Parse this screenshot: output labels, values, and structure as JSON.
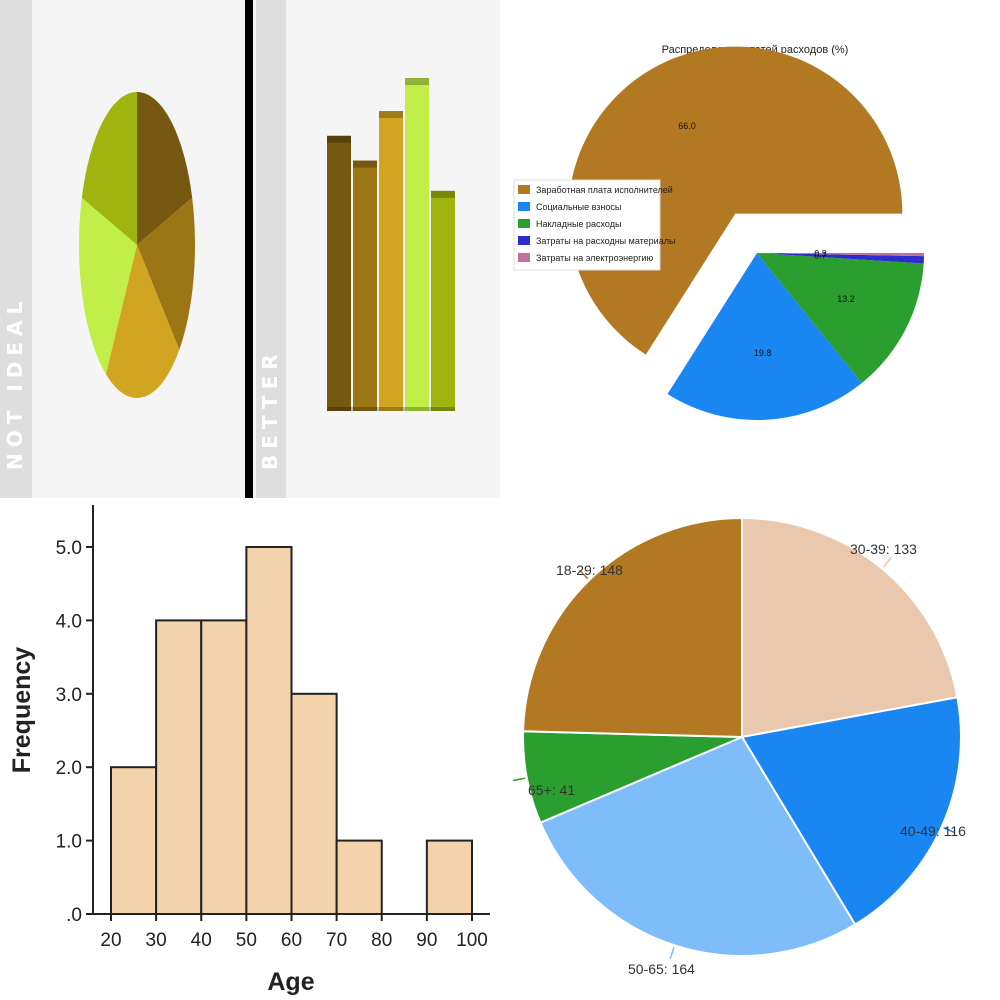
{
  "chart_data": [
    {
      "id": "not_ideal",
      "type": "pie",
      "side_label": "NOT IDEAL",
      "values": [
        20,
        17,
        22,
        21,
        20
      ],
      "colors": [
        "#765810",
        "#9c7615",
        "#d1a421",
        "#c1ee48",
        "#9fb40f"
      ]
    },
    {
      "id": "better",
      "type": "bar",
      "side_label": "BETTER",
      "values": [
        100,
        91,
        109,
        121,
        80
      ],
      "colors": [
        "#765810",
        "#9c7615",
        "#d1a421",
        "#c1ee48",
        "#9fb40f"
      ],
      "ylim": [
        0,
        121
      ]
    },
    {
      "id": "expenses",
      "type": "pie",
      "title": "Распределение статей расходов (%)",
      "labels": [
        "Заработная плата исполнителей",
        "Социальные взносы",
        "Накладные расходы",
        "Затраты на расходны материалы",
        "Затраты на электроэнергию"
      ],
      "values": [
        66.0,
        19.8,
        13.2,
        0.7,
        0.3
      ],
      "value_labels": [
        "66.0",
        "19.8",
        "13.2",
        "0.7",
        "0.3"
      ],
      "colors": [
        "#b37822",
        "#1a86f2",
        "#2a9e2e",
        "#2c2ccf",
        "#c0719a"
      ],
      "legend_position": "left"
    },
    {
      "id": "age_histogram",
      "type": "bar",
      "xlabel": "Age",
      "ylabel": "Frequency",
      "bins": [
        [
          20,
          30
        ],
        [
          30,
          40
        ],
        [
          40,
          50
        ],
        [
          50,
          60
        ],
        [
          60,
          70
        ],
        [
          70,
          80
        ],
        [
          90,
          100
        ]
      ],
      "values": [
        2,
        4,
        4,
        5,
        3,
        1,
        1
      ],
      "xlim": [
        20,
        100
      ],
      "ylim": [
        0,
        5.5
      ],
      "xticks": [
        20,
        30,
        40,
        50,
        60,
        70,
        80,
        90,
        100
      ],
      "yticks": [
        ".0",
        "1.0",
        "2.0",
        "3.0",
        "4.0",
        "5.0"
      ],
      "bar_color": "#f3d3ab"
    },
    {
      "id": "age_groups",
      "type": "pie",
      "labels": [
        "30-39: 133",
        "40-49: 116",
        "50-65: 164",
        "65+: 41",
        "18-29: 148"
      ],
      "values": [
        133,
        116,
        164,
        41,
        148
      ],
      "colors": [
        "#e9c8ae",
        "#1a86f2",
        "#7fbcfa",
        "#2a9e2e",
        "#b37822"
      ]
    }
  ]
}
